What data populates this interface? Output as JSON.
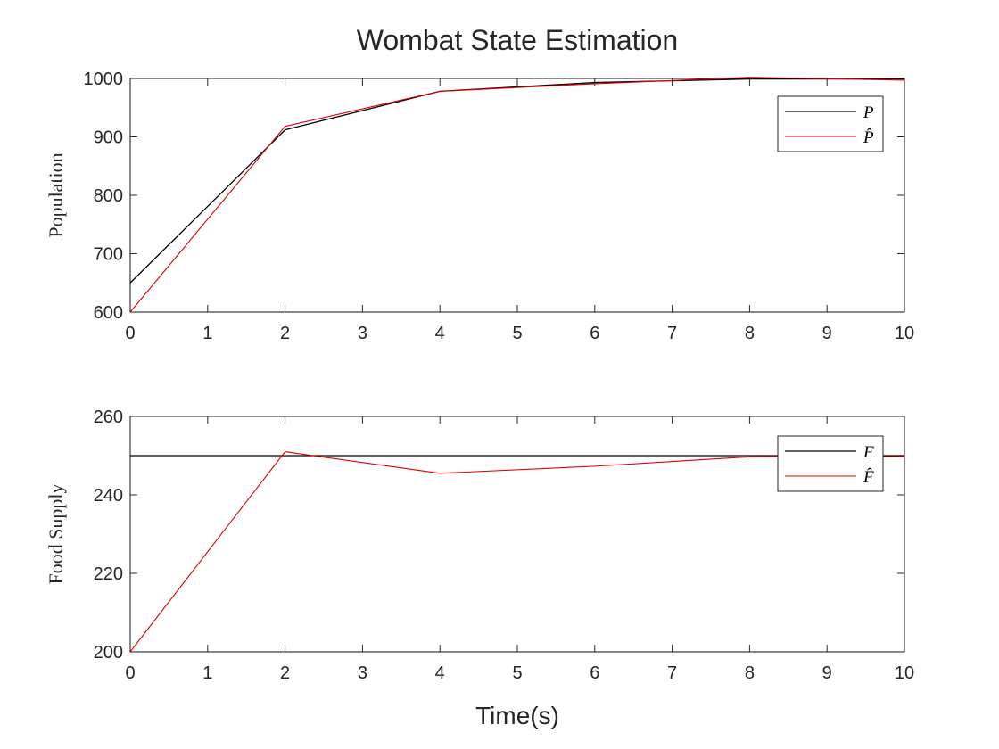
{
  "figure": {
    "title": "Wombat State Estimation",
    "xlabel": "Time(s)"
  },
  "colors": {
    "true_series": "#000000",
    "estimate_series": "#dd0000",
    "axes": "#262626",
    "background": "#ffffff"
  },
  "chart_data": [
    {
      "type": "line",
      "title": "",
      "xlabel": "",
      "ylabel": "Population",
      "xlim": [
        0,
        10
      ],
      "ylim": [
        600,
        1000
      ],
      "xticks": [
        0,
        1,
        2,
        3,
        4,
        5,
        6,
        7,
        8,
        9,
        10
      ],
      "yticks": [
        600,
        700,
        800,
        900,
        1000
      ],
      "grid": false,
      "legend_position": "top-right",
      "x": [
        0,
        2,
        4,
        6,
        8,
        10
      ],
      "series": [
        {
          "name": "P",
          "color": "#000000",
          "values": [
            650,
            912,
            978,
            993,
            999,
            999
          ]
        },
        {
          "name": "P̂",
          "color": "#dd0000",
          "values": [
            600,
            918,
            978,
            991,
            1002,
            997
          ]
        }
      ]
    },
    {
      "type": "line",
      "title": "",
      "xlabel": "Time(s)",
      "ylabel": "Food Supply",
      "xlim": [
        0,
        10
      ],
      "ylim": [
        200,
        260
      ],
      "xticks": [
        0,
        1,
        2,
        3,
        4,
        5,
        6,
        7,
        8,
        9,
        10
      ],
      "yticks": [
        200,
        220,
        240,
        260
      ],
      "grid": false,
      "legend_position": "top-right",
      "x": [
        0,
        2,
        4,
        6,
        8,
        10
      ],
      "series": [
        {
          "name": "F",
          "color": "#000000",
          "values": [
            250,
            250,
            250,
            250,
            250,
            250
          ]
        },
        {
          "name": "F̂",
          "color": "#dd0000",
          "values": [
            200,
            251,
            245.5,
            247.3,
            249.7,
            249.8
          ]
        }
      ]
    }
  ]
}
